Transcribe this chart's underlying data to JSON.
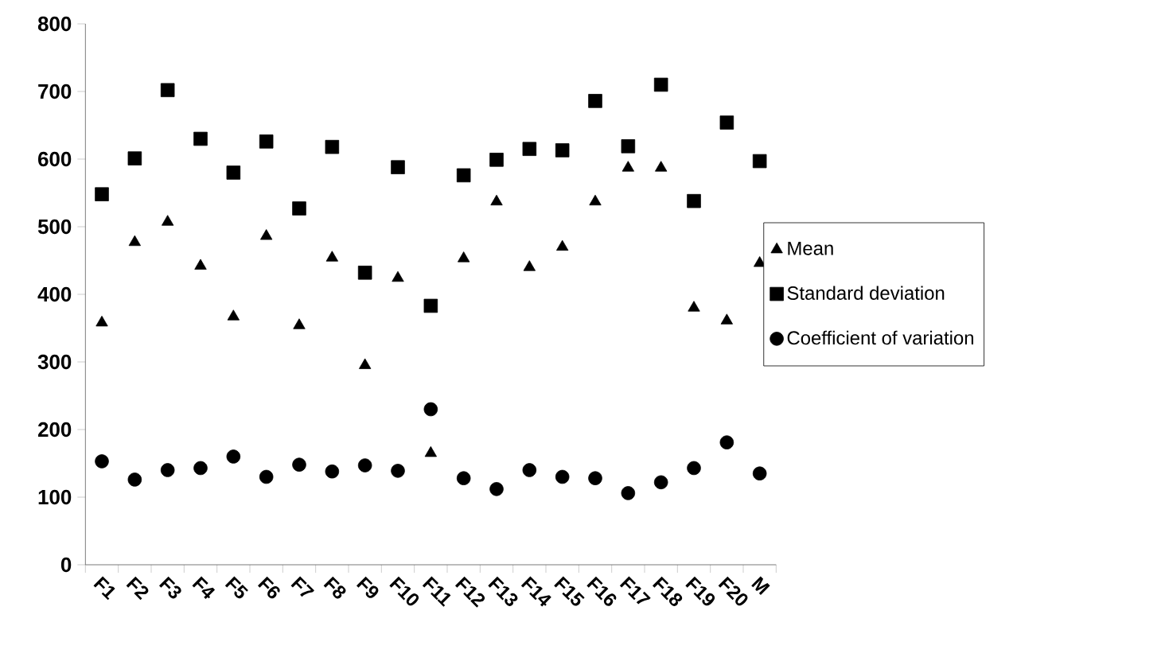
{
  "chart_data": {
    "type": "scatter",
    "categories": [
      "F1",
      "F2",
      "F3",
      "F4",
      "F5",
      "F6",
      "F7",
      "F8",
      "F9",
      "F10",
      "F11",
      "F12",
      "F13",
      "F14",
      "F15",
      "F16",
      "F17",
      "F18",
      "F19",
      "F20",
      "M"
    ],
    "ylim": [
      0,
      800
    ],
    "yticks": [
      0,
      100,
      200,
      300,
      400,
      500,
      600,
      700,
      800
    ],
    "grid": false,
    "legend": "right",
    "series": [
      {
        "name": "Mean",
        "color": "#000000",
        "marker": "triangle",
        "values": [
          358,
          477,
          507,
          442,
          367,
          486,
          354,
          454,
          295,
          424,
          165,
          453,
          537,
          440,
          470,
          537,
          587,
          587,
          380,
          361,
          446
        ]
      },
      {
        "name": "Standard deviation",
        "color": "#000000",
        "marker": "square",
        "values": [
          548,
          601,
          702,
          630,
          580,
          626,
          527,
          618,
          432,
          588,
          383,
          576,
          599,
          615,
          613,
          686,
          619,
          710,
          538,
          654,
          597
        ]
      },
      {
        "name": "Coefficient of variation",
        "color": "#000000",
        "marker": "circle",
        "values": [
          153,
          126,
          140,
          143,
          160,
          130,
          148,
          138,
          147,
          139,
          230,
          128,
          112,
          140,
          130,
          128,
          106,
          122,
          143,
          181,
          135
        ]
      }
    ]
  }
}
